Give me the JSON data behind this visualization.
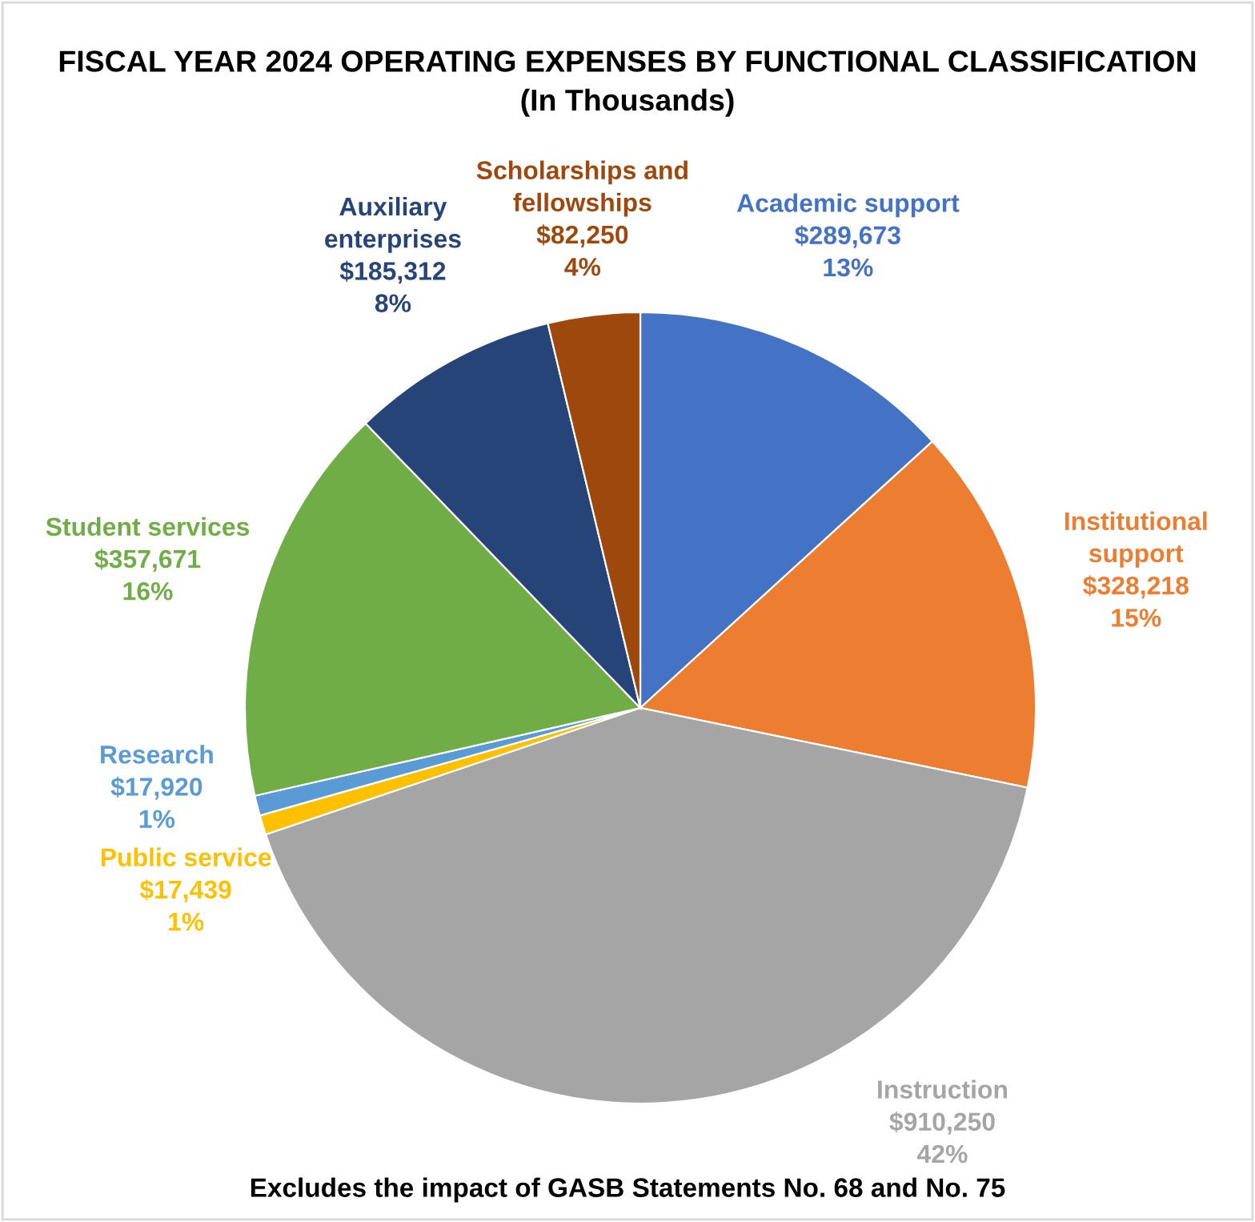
{
  "chart_data": {
    "type": "pie",
    "title": "FISCAL YEAR 2024 OPERATING EXPENSES BY FUNCTIONAL CLASSIFICATION\n(In Thousands)",
    "categories": [
      "Academic support",
      "Institutional\nsupport",
      "Instruction",
      "Public service",
      "Research",
      "Student services",
      "Auxiliary\nenterprises",
      "Scholarships and\nfellowships"
    ],
    "values": [
      289673,
      328218,
      910250,
      17439,
      17920,
      357671,
      185312,
      82250
    ],
    "value_labels": [
      "$289,673\n13%",
      "$328,218\n15%",
      "$910,250\n42%",
      "$17,439\n1%",
      "$17,920\n1%",
      "$357,671\n16%",
      "$185,312\n8%",
      "$82,250\n4%"
    ],
    "colors": [
      "#4472c4",
      "#ed7d31",
      "#a5a5a5",
      "#ffc000",
      "#5b9bd5",
      "#70ad47",
      "#264478",
      "#9e480e"
    ],
    "annotations": [
      "Excludes the impact of GASB Statements No. 68 and No. 75"
    ],
    "legend": false
  }
}
